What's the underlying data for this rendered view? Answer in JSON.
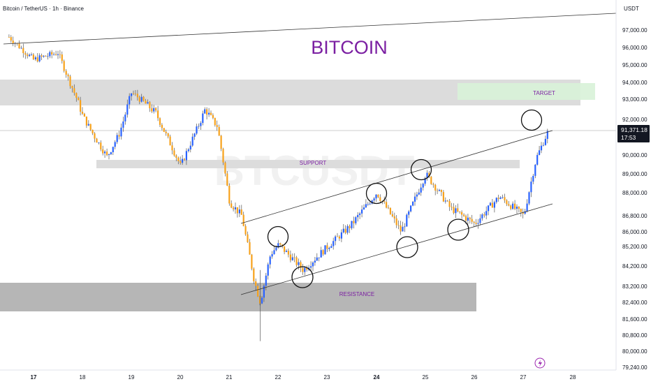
{
  "header": {
    "symbol_title": "Bitcoin / TetherUS · 1h · Binance",
    "currency": "USDT"
  },
  "watermark": "BTCUSDT",
  "headline": "BITCOIN",
  "last_price": {
    "value": "91,371.18",
    "countdown": "17:53"
  },
  "zones": [
    {
      "label": "TARGET",
      "color": "#7b1fa2"
    },
    {
      "label": "SUPPORT",
      "color": "#7b1fa2"
    },
    {
      "label": "RESISTANCE",
      "color": "#7b1fa2"
    }
  ],
  "colors": {
    "up": "#2962ff",
    "down": "#f7a21c",
    "headline": "#7b1fa2",
    "target_fill": "#d8f2d8"
  },
  "chart_data": {
    "type": "candlestick",
    "x_tick_labels": [
      "17",
      "18",
      "19",
      "20",
      "21",
      "22",
      "23",
      "24",
      "25",
      "26",
      "27",
      "28"
    ],
    "y_tick_labels": [
      "97,000.00",
      "96,000.00",
      "95,000.00",
      "94,000.00",
      "93,000.00",
      "92,000.00",
      "90,000.00",
      "89,000.00",
      "88,000.00",
      "86,800.00",
      "86,000.00",
      "85,200.00",
      "84,200.00",
      "83,200.00",
      "82,400.00",
      "81,600.00",
      "80,800.00",
      "80,000.00",
      "79,240.00"
    ],
    "y_scale": "log",
    "approx_close_path": [
      {
        "x": "16 Dec 12:00",
        "y": 96600
      },
      {
        "x": "17 Dec 00:00",
        "y": 95300
      },
      {
        "x": "17 Dec 12:00",
        "y": 95700
      },
      {
        "x": "18 Dec 00:00",
        "y": 92200
      },
      {
        "x": "18 Dec 06:00",
        "y": 91000
      },
      {
        "x": "18 Dec 12:00",
        "y": 89900
      },
      {
        "x": "18 Dec 18:00",
        "y": 91200
      },
      {
        "x": "19 Dec 00:00",
        "y": 93400
      },
      {
        "x": "19 Dec 12:00",
        "y": 92300
      },
      {
        "x": "20 Dec 00:00",
        "y": 89400
      },
      {
        "x": "20 Dec 12:00",
        "y": 92500
      },
      {
        "x": "20 Dec 18:00",
        "y": 91600
      },
      {
        "x": "21 Dec 00:00",
        "y": 87500
      },
      {
        "x": "21 Dec 06:00",
        "y": 86800
      },
      {
        "x": "21 Dec 12:00",
        "y": 83500
      },
      {
        "x": "21 Dec 15:00",
        "y": 82400
      },
      {
        "x": "21 Dec 20:00",
        "y": 84800
      },
      {
        "x": "22 Dec 00:00",
        "y": 85300
      },
      {
        "x": "22 Dec 12:00",
        "y": 84000
      },
      {
        "x": "23 Dec 00:00",
        "y": 85200
      },
      {
        "x": "23 Dec 12:00",
        "y": 86400
      },
      {
        "x": "24 Dec 00:00",
        "y": 88000
      },
      {
        "x": "24 Dec 12:00",
        "y": 86000
      },
      {
        "x": "25 Dec 00:00",
        "y": 89000
      },
      {
        "x": "25 Dec 12:00",
        "y": 87200
      },
      {
        "x": "26 Dec 00:00",
        "y": 86400
      },
      {
        "x": "26 Dec 12:00",
        "y": 87800
      },
      {
        "x": "27 Dec 00:00",
        "y": 86800
      },
      {
        "x": "27 Dec 06:00",
        "y": 89800
      },
      {
        "x": "27 Dec 12:00",
        "y": 91371
      }
    ],
    "annotations": {
      "target_zone": [
        92900,
        94100
      ],
      "support_zone": [
        89400,
        89700
      ],
      "resistance_zone": [
        82000,
        83300
      ],
      "ascending_channel": true,
      "long_term_trendline": true
    }
  }
}
